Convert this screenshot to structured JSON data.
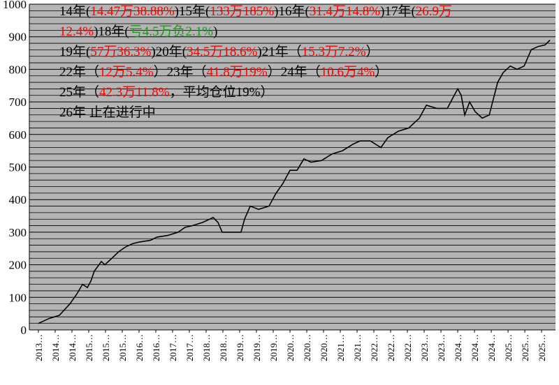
{
  "chart_data": {
    "type": "line",
    "annotations": [
      [
        {
          "text": "14年(",
          "color": "#000000"
        },
        {
          "text": "14.47万38.88%",
          "color": "#ff0000"
        },
        {
          "text": ")15年(",
          "color": "#000000"
        },
        {
          "text": "133万185%",
          "color": "#ff0000"
        },
        {
          "text": ")16年(",
          "color": "#000000"
        },
        {
          "text": "31.4万14.8%",
          "color": "#ff0000"
        },
        {
          "text": ")17年(",
          "color": "#000000"
        },
        {
          "text": "26.9万",
          "color": "#ff0000"
        }
      ],
      [
        {
          "text": "12.4%",
          "color": "#ff0000"
        },
        {
          "text": ")18年(",
          "color": "#000000"
        },
        {
          "text": "亏4.5万负2.1%",
          "color": "#1a9a1a"
        },
        {
          "text": ")",
          "color": "#000000"
        }
      ],
      [
        {
          "text": "19年(",
          "color": "#000000"
        },
        {
          "text": "57万36.3%",
          "color": "#ff0000"
        },
        {
          "text": ")20年(",
          "color": "#000000"
        },
        {
          "text": "34.5万18.6%",
          "color": "#ff0000"
        },
        {
          "text": ")21年（",
          "color": "#000000"
        },
        {
          "text": "15.3万7.2%",
          "color": "#ff0000"
        },
        {
          "text": "）",
          "color": "#000000"
        }
      ],
      [
        {
          "text": "22年（",
          "color": "#000000"
        },
        {
          "text": "12万5.4%",
          "color": "#ff0000"
        },
        {
          "text": "）23年（",
          "color": "#000000"
        },
        {
          "text": "41.8万19%",
          "color": "#ff0000"
        },
        {
          "text": "）24年（",
          "color": "#000000"
        },
        {
          "text": "10.6万4%",
          "color": "#ff0000"
        },
        {
          "text": "）",
          "color": "#000000"
        }
      ],
      [
        {
          "text": "25年（",
          "color": "#000000"
        },
        {
          "text": "42.3万11.8%",
          "color": "#ff0000"
        },
        {
          "text": "，平均仓位19%）",
          "color": "#000000"
        }
      ],
      [
        {
          "text": "26年 止在进行中",
          "color": "#000000"
        }
      ]
    ],
    "xticks": [
      {
        "value": 0,
        "label": "2013…"
      },
      {
        "value": 1,
        "label": "2014…"
      },
      {
        "value": 2,
        "label": "2014…"
      },
      {
        "value": 3,
        "label": "2015…"
      },
      {
        "value": 4,
        "label": "2015…"
      },
      {
        "value": 5,
        "label": "2015…"
      },
      {
        "value": 6,
        "label": "2016…"
      },
      {
        "value": 7,
        "label": "2016…"
      },
      {
        "value": 8,
        "label": "2017…"
      },
      {
        "value": 9,
        "label": "2017…"
      },
      {
        "value": 10,
        "label": "2018…"
      },
      {
        "value": 11,
        "label": "2018…"
      },
      {
        "value": 12,
        "label": "2019…"
      },
      {
        "value": 13,
        "label": "2019…"
      },
      {
        "value": 14,
        "label": "2019…"
      },
      {
        "value": 15,
        "label": "2020…"
      },
      {
        "value": 16,
        "label": "2020…"
      },
      {
        "value": 17,
        "label": "2020…"
      },
      {
        "value": 18,
        "label": "2021…"
      },
      {
        "value": 19,
        "label": "2021…"
      },
      {
        "value": 20,
        "label": "2022…"
      },
      {
        "value": 21,
        "label": "2022…"
      },
      {
        "value": 22,
        "label": "2022…"
      },
      {
        "value": 23,
        "label": "2023…"
      },
      {
        "value": 24,
        "label": "2023…"
      },
      {
        "value": 25,
        "label": "2024…"
      },
      {
        "value": 26,
        "label": "2024…"
      },
      {
        "value": 27,
        "label": "2024…"
      },
      {
        "value": 28,
        "label": "2025…"
      },
      {
        "value": 29,
        "label": "2025…"
      },
      {
        "value": 30,
        "label": "2025…"
      }
    ],
    "xlim": [
      -0.54,
      30.83
    ],
    "ylim": [
      0,
      1000
    ],
    "yticks": [
      0,
      100,
      200,
      300,
      400,
      500,
      600,
      700,
      800,
      900,
      1000
    ],
    "minor_yticks": [
      20,
      40,
      60,
      80,
      120,
      140,
      160,
      180,
      220,
      240,
      260,
      280,
      320,
      340,
      360,
      380,
      420,
      440,
      460,
      480,
      520,
      540,
      560,
      580,
      620,
      640,
      660,
      680,
      720,
      740,
      760,
      780,
      820,
      840,
      860,
      880,
      920,
      940,
      960,
      980
    ],
    "grid": true,
    "background": "#b4b4b4",
    "series": [
      {
        "color": "#000000",
        "x": [
          0,
          0.63,
          1.25,
          1.88,
          2.29,
          2.63,
          2.92,
          3.13,
          3.33,
          3.75,
          3.96,
          4.38,
          4.79,
          5.21,
          5.63,
          6.04,
          6.67,
          7.08,
          7.71,
          8.33,
          8.75,
          9.17,
          9.79,
          10.42,
          10.71,
          10.96,
          11.46,
          12.08,
          12.29,
          12.63,
          13.13,
          13.75,
          14.17,
          14.58,
          15,
          15.42,
          15.83,
          16.25,
          16.88,
          17.5,
          18.13,
          18.75,
          19.17,
          19.79,
          20.42,
          20.83,
          21.46,
          22.08,
          22.71,
          23.13,
          23.75,
          24.38,
          24.79,
          25,
          25.21,
          25.42,
          25.71,
          26.04,
          26.46,
          26.88,
          27.08,
          27.38,
          27.71,
          28.13,
          28.54,
          28.96,
          29.38,
          29.79,
          30.21,
          30.5
        ],
        "values": [
          20,
          35,
          45,
          80,
          110,
          140,
          130,
          150,
          180,
          210,
          200,
          220,
          240,
          255,
          265,
          270,
          275,
          285,
          290,
          300,
          315,
          320,
          330,
          345,
          330,
          300,
          300,
          300,
          340,
          380,
          370,
          380,
          420,
          450,
          490,
          490,
          525,
          515,
          520,
          540,
          550,
          570,
          580,
          580,
          560,
          590,
          610,
          620,
          650,
          690,
          680,
          680,
          720,
          740,
          720,
          660,
          700,
          670,
          650,
          660,
          700,
          760,
          790,
          810,
          800,
          810,
          860,
          870,
          875,
          890
        ]
      }
    ]
  }
}
